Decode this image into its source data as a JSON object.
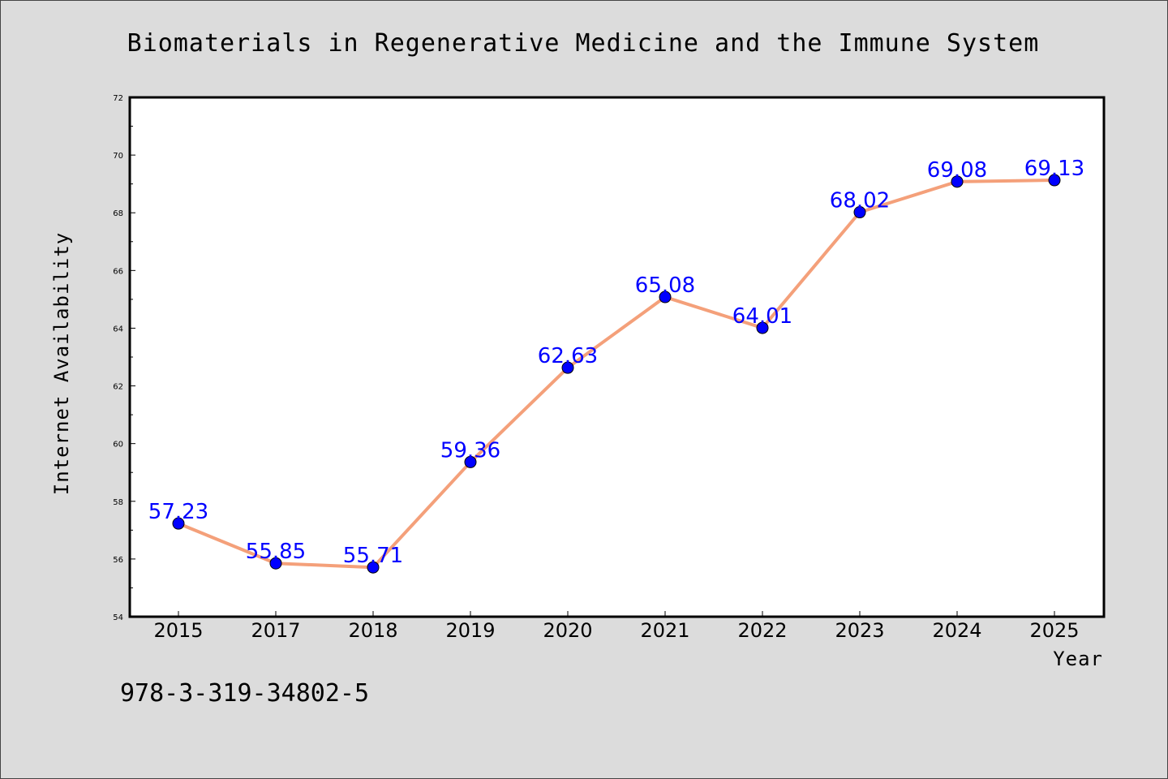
{
  "colors": {
    "background": "#dcdcdc",
    "plot_background": "#ffffff",
    "line": "#f4a07a",
    "marker": "#0000ff",
    "label": "#0000ff"
  },
  "footer_text": "978-3-319-34802-5",
  "chart_data": {
    "type": "line",
    "title": "Biomaterials in Regenerative Medicine and the Immune System",
    "xlabel": "Year",
    "ylabel": "Internet Availability",
    "categories": [
      "2015",
      "2017",
      "2018",
      "2019",
      "2020",
      "2021",
      "2022",
      "2023",
      "2024",
      "2025"
    ],
    "series": [
      {
        "values": [
          57.23,
          55.85,
          55.71,
          59.36,
          62.63,
          65.08,
          64.01,
          68.02,
          69.08,
          69.13
        ],
        "labels": [
          "57.23",
          "55.85",
          "55.71",
          "59.36",
          "62.63",
          "65.08",
          "64.01",
          "68.02",
          "69.08",
          "69.13"
        ]
      }
    ],
    "ylim": [
      54,
      72
    ],
    "yticks": [
      "54",
      "56",
      "58",
      "60",
      "62",
      "64",
      "66",
      "68",
      "70",
      "72"
    ],
    "grid": false,
    "legend": "none"
  }
}
